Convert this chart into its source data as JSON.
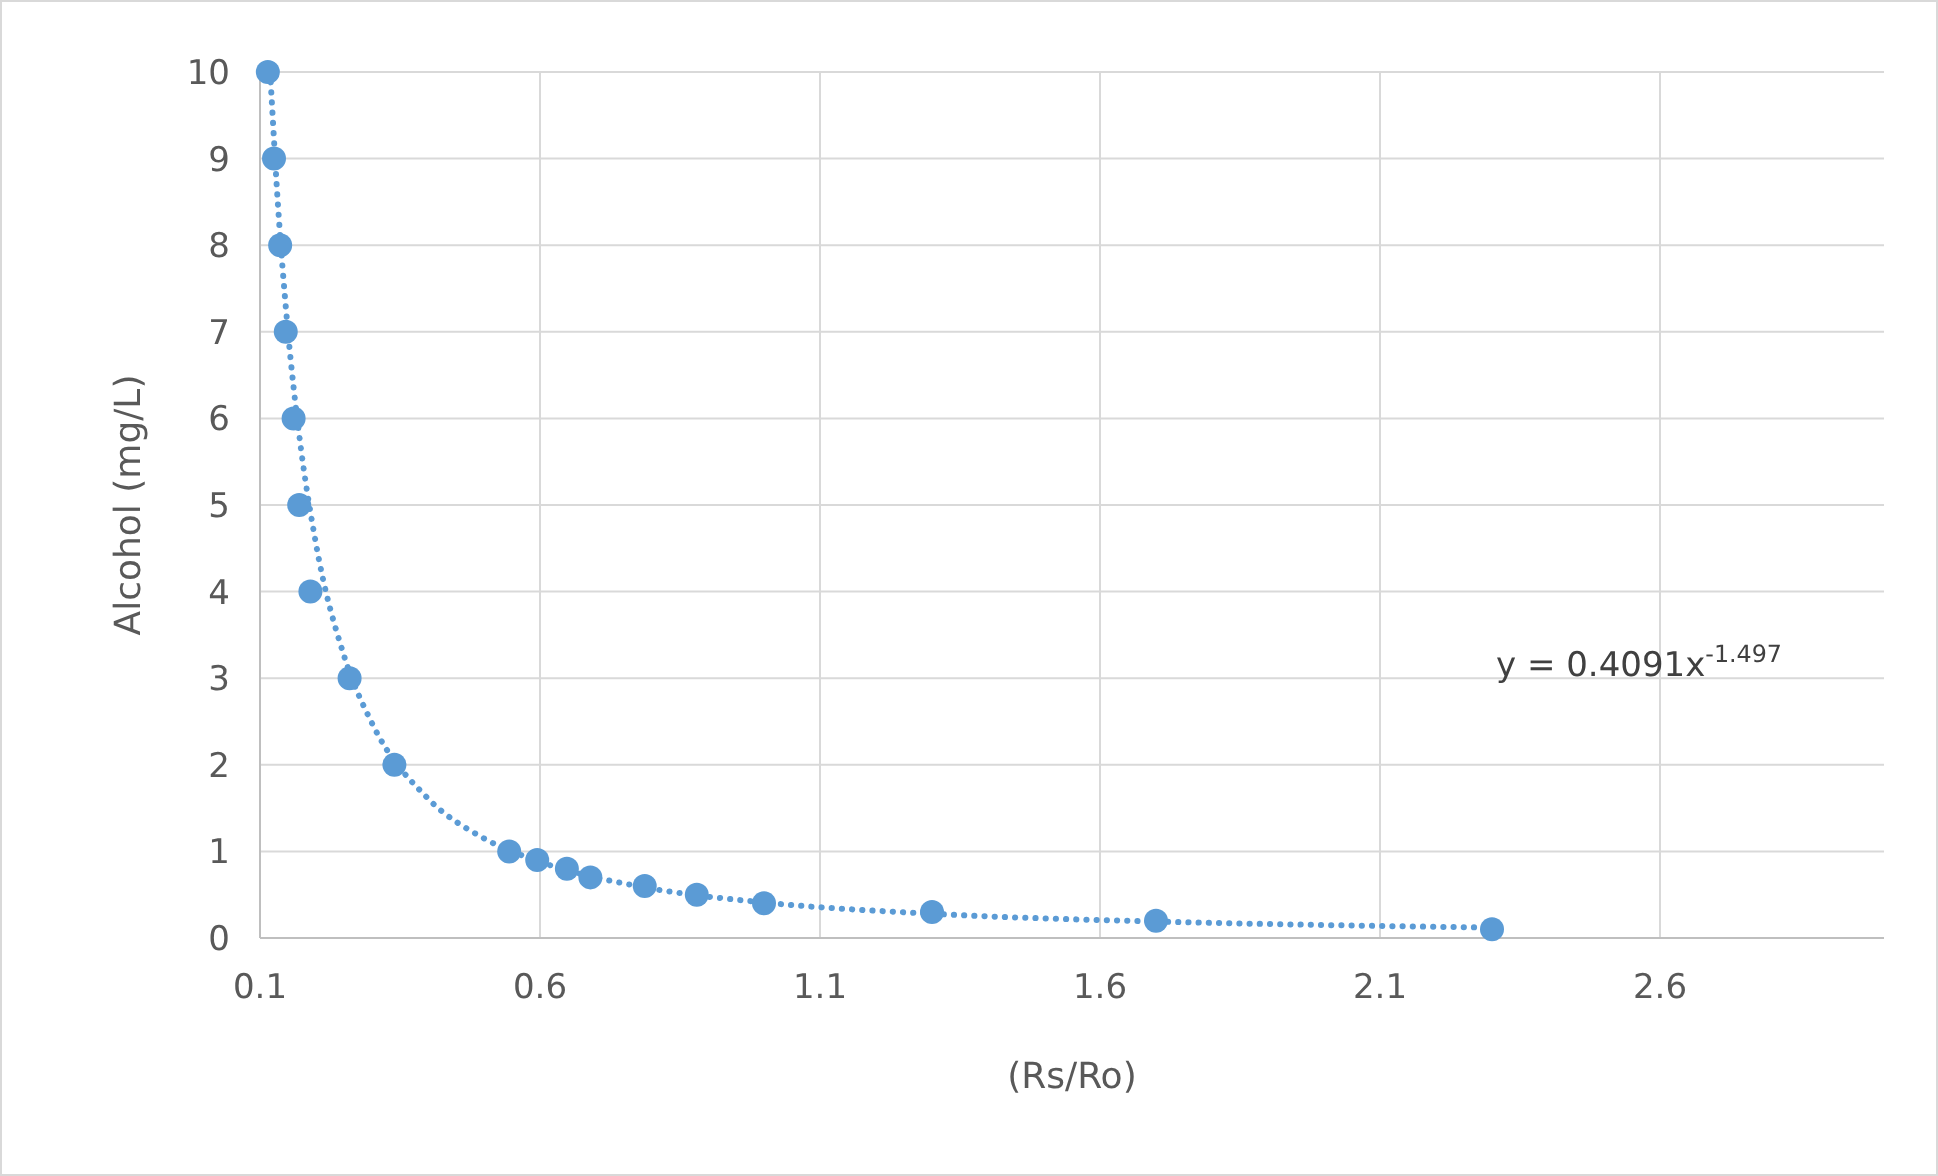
{
  "chart_data": {
    "type": "scatter",
    "xlabel": "(Rs/Ro)",
    "ylabel": "Alcohol (mg/L)",
    "xlim": [
      0.1,
      3.0
    ],
    "xticks": [
      0.1,
      0.6,
      1.1,
      1.6,
      2.1,
      2.6
    ],
    "ylim": [
      0,
      10
    ],
    "yticks": [
      0,
      1,
      2,
      3,
      4,
      5,
      6,
      7,
      8,
      9,
      10
    ],
    "grid": true,
    "series": [
      {
        "color": "#5b9bd5",
        "marker": "circle",
        "x": [
          0.114,
          0.125,
          0.136,
          0.146,
          0.16,
          0.17,
          0.19,
          0.26,
          0.34,
          0.545,
          0.595,
          0.648,
          0.69,
          0.787,
          0.88,
          1.0,
          1.3,
          1.7,
          2.3
        ],
        "values": [
          10,
          9,
          8,
          7,
          6,
          5,
          4,
          3,
          2,
          1,
          0.9,
          0.8,
          0.7,
          0.6,
          0.5,
          0.4,
          0.3,
          0.2,
          0.1
        ]
      },
      {
        "type": "line",
        "color": "#5b9bd5",
        "marker": "none",
        "line_style": "dotted",
        "x": [
          0.118,
          0.12,
          0.13,
          0.15,
          0.17,
          0.2,
          0.25,
          0.3,
          0.4,
          0.5,
          0.6,
          0.8,
          1.0,
          1.3,
          1.7,
          2.0,
          2.3
        ],
        "values": [
          10,
          9.78,
          8.67,
          7.0,
          5.81,
          4.55,
          3.26,
          2.48,
          1.61,
          1.15,
          0.88,
          0.57,
          0.41,
          0.28,
          0.19,
          0.15,
          0.12
        ]
      }
    ],
    "annotations": [
      "y = 0.4091x$^{-1.497}$"
    ]
  }
}
